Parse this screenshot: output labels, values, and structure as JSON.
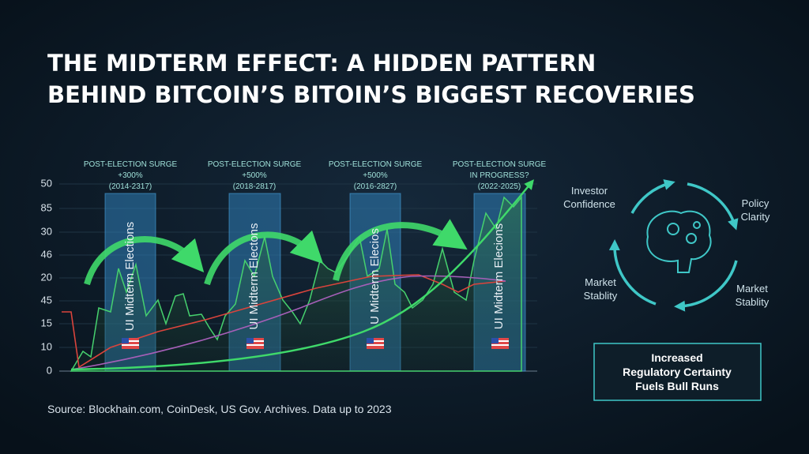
{
  "header": {
    "title": [
      "THE MIDTERM EFFECT: A HIDDEN PATTERN",
      "BEHIND BITCOIN’S BITOIN’S BIGGEST RECOVERIES"
    ]
  },
  "chart": {
    "y_axis_labels": [
      "50",
      "85",
      "30",
      "46",
      "20",
      "45",
      "15",
      "10",
      "0"
    ],
    "annotations": [
      [
        "POST-ELECTION SURGE",
        "+300%",
        "(2014-2317)"
      ],
      [
        "POST-ELECTION SURGE",
        "+500%",
        "(2018-2817)"
      ],
      [
        "POST-ELECTION SURGE",
        "+500%",
        "(2016-2827)"
      ],
      [
        "POST-ELECTION SURGE",
        "IN PROGRESS?",
        "(2022-2025)"
      ]
    ],
    "band_labels": [
      "UI Midterm Elections",
      "UI Midterm Electons",
      "U Midterm Elecios",
      "UI Midterm Elecions"
    ]
  },
  "cycle": {
    "labels": [
      [
        "Investor",
        "Confidence"
      ],
      [
        "Policy",
        "Clarity"
      ],
      [
        "Market",
        "Stablity"
      ],
      [
        "Market",
        "Stablity"
      ]
    ],
    "box": [
      "Increased",
      "Regulatory Certainty",
      "Fuels Bull Runs"
    ]
  },
  "footer": {
    "source": "Source: Blockhain.com, CoinDesk, US Gov. Archives. Data up to 2023"
  }
}
